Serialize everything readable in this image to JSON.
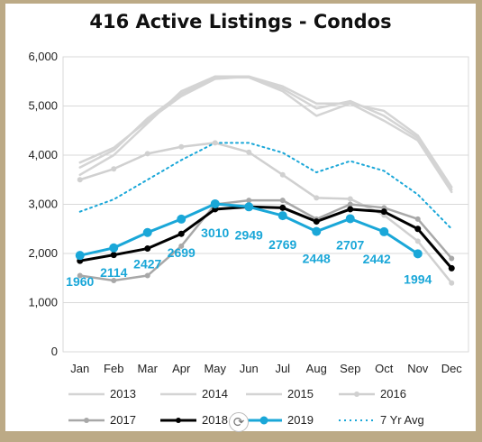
{
  "chart_data": {
    "type": "line",
    "title": "416 Active Listings - Condos",
    "xlabel": "",
    "ylabel": "",
    "ylim": [
      0,
      6000
    ],
    "yticks": [
      0,
      1000,
      2000,
      3000,
      4000,
      5000,
      6000
    ],
    "ytick_labels": [
      "0",
      "1,000",
      "2,000",
      "3,000",
      "4,000",
      "5,000",
      "6,000"
    ],
    "categories": [
      "Jan",
      "Feb",
      "Mar",
      "Apr",
      "May",
      "Jun",
      "Jul",
      "Aug",
      "Sep",
      "Oct",
      "Nov",
      "Dec"
    ],
    "grid": "horizontal",
    "legend_position": "bottom",
    "series": [
      {
        "name": "2013",
        "color": "#d4d4d4",
        "style": "solid",
        "markers": false,
        "values": [
          3850,
          4150,
          4700,
          5200,
          5550,
          5600,
          5350,
          4950,
          5100,
          4800,
          4350,
          3300
        ]
      },
      {
        "name": "2014",
        "color": "#d4d4d4",
        "style": "solid",
        "markers": false,
        "values": [
          3750,
          4100,
          4750,
          5250,
          5580,
          5580,
          5300,
          4800,
          5050,
          4700,
          4300,
          3250
        ]
      },
      {
        "name": "2015",
        "color": "#d4d4d4",
        "style": "solid",
        "markers": false,
        "values": [
          3600,
          4000,
          4650,
          5300,
          5600,
          5600,
          5400,
          5050,
          5050,
          4900,
          4400,
          3350
        ]
      },
      {
        "name": "2016",
        "color": "#d0d0d0",
        "style": "solid",
        "markers": true,
        "values": [
          3500,
          3720,
          4030,
          4170,
          4250,
          4060,
          3600,
          3130,
          3110,
          2780,
          2250,
          1400
        ]
      },
      {
        "name": "2017",
        "color": "#a8a8a8",
        "style": "solid",
        "markers": true,
        "values": [
          1550,
          1450,
          1550,
          2150,
          3000,
          3080,
          3080,
          2700,
          3000,
          2930,
          2700,
          1900
        ]
      },
      {
        "name": "2018",
        "color": "#000000",
        "style": "solid",
        "markers": true,
        "values": [
          1850,
          1970,
          2100,
          2400,
          2900,
          2950,
          2930,
          2650,
          2900,
          2850,
          2500,
          1700
        ]
      },
      {
        "name": "2019",
        "color": "#1aa7d8",
        "style": "solid",
        "markers": true,
        "values": [
          1960,
          2114,
          2427,
          2699,
          3010,
          2949,
          2769,
          2448,
          2707,
          2442,
          1994,
          null
        ]
      },
      {
        "name": "7 Yr Avg",
        "color": "#1aa7d8",
        "style": "dotted",
        "markers": false,
        "values": [
          2850,
          3100,
          3500,
          3900,
          4250,
          4250,
          4050,
          3650,
          3880,
          3680,
          3200,
          2500
        ]
      }
    ],
    "data_labels": {
      "series": "2019",
      "labels": [
        "1960",
        "2114",
        "2427",
        "2699",
        "3010",
        "2949",
        "2769",
        "2448",
        "2707",
        "2442",
        "1994"
      ]
    },
    "legend": {
      "rows": [
        [
          "2013",
          "2014",
          "2015",
          "2016"
        ],
        [
          "2017",
          "2018",
          "2019",
          "7 Yr Avg"
        ]
      ]
    }
  }
}
